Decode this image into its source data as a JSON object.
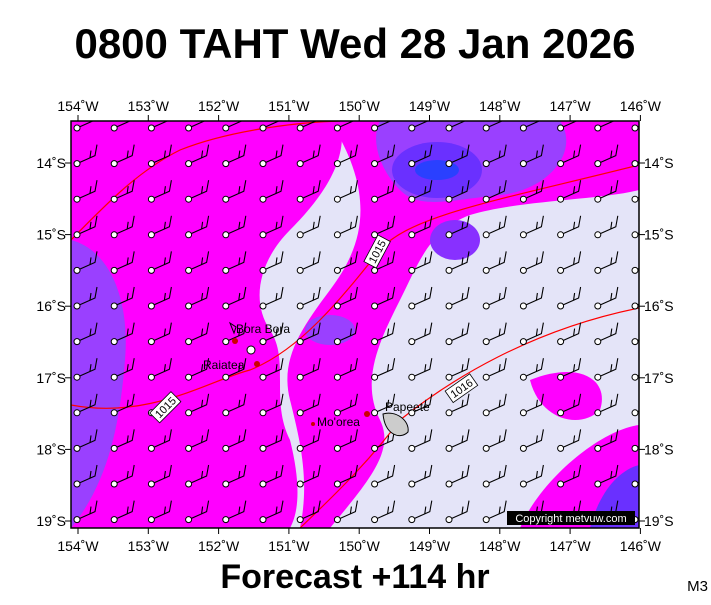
{
  "title": "0800 TAHT Wed 28 Jan 2026",
  "longitude_labels": [
    "154˚W",
    "153˚W",
    "152˚W",
    "151˚W",
    "150˚W",
    "149˚W",
    "148˚W",
    "147˚W",
    "146˚W"
  ],
  "latitude_labels": [
    "14˚S",
    "15˚S",
    "16˚S",
    "17˚S",
    "18˚S",
    "19˚S"
  ],
  "places": [
    "Bora Bora",
    "Raiatea",
    "Mo'orea",
    "Papeete"
  ],
  "isobar_labels": [
    "1015",
    "1015",
    "1016"
  ],
  "copyright": "Copyright metvuw.com",
  "footer": "Forecast +114 hr",
  "model": "M3"
}
